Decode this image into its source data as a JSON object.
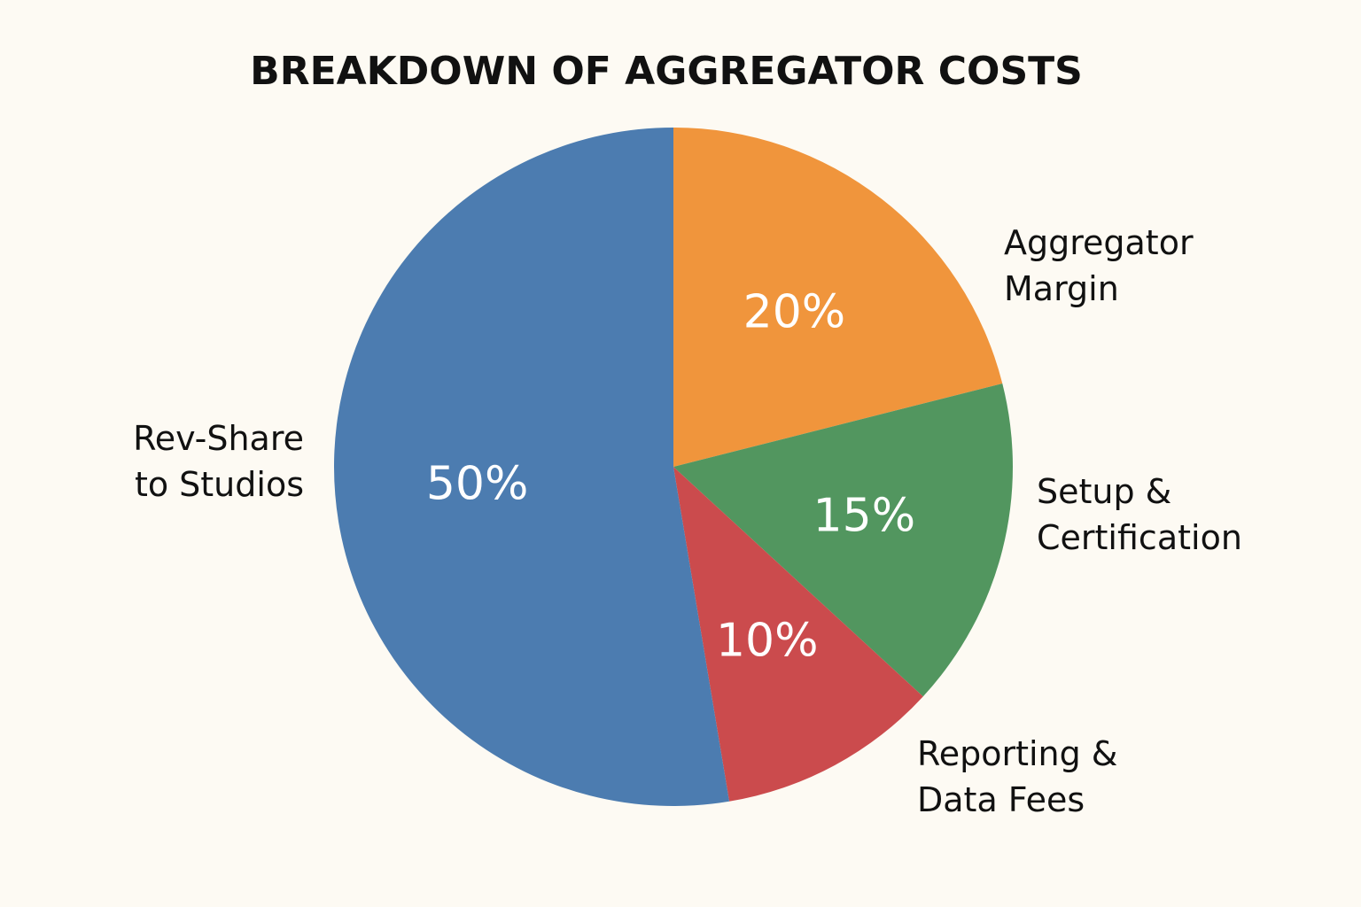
{
  "chart_data": {
    "type": "pie",
    "title": "BREAKDOWN OF AGGREGATOR COSTS",
    "start_angle_deg": 0,
    "direction": "clockwise",
    "slices": [
      {
        "label_lines": [
          "Aggregator",
          "Margin"
        ],
        "value": 20,
        "value_label": "20%",
        "color": "#f0953c"
      },
      {
        "label_lines": [
          "Setup &",
          "Certification"
        ],
        "value": 15,
        "value_label": "15%",
        "color": "#52965f"
      },
      {
        "label_lines": [
          "Reporting &",
          "Data Fees"
        ],
        "value": 10,
        "value_label": "10%",
        "color": "#cb4b4d"
      },
      {
        "label_lines": [
          "Rev-Share",
          "to Studios"
        ],
        "value": 50,
        "value_label": "50%",
        "color": "#4c7cb0"
      }
    ]
  }
}
